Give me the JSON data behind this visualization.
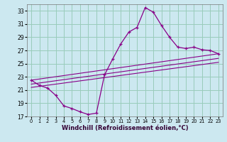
{
  "xlabel": "Windchill (Refroidissement éolien,°C)",
  "bg_color": "#cce8f0",
  "grid_color": "#99ccbb",
  "line_color": "#880088",
  "xlim": [
    -0.5,
    23.5
  ],
  "ylim": [
    17,
    34
  ],
  "yticks": [
    17,
    19,
    21,
    23,
    25,
    27,
    29,
    31,
    33
  ],
  "xticks": [
    0,
    1,
    2,
    3,
    4,
    5,
    6,
    7,
    8,
    9,
    10,
    11,
    12,
    13,
    14,
    15,
    16,
    17,
    18,
    19,
    20,
    21,
    22,
    23
  ],
  "series1_x": [
    0,
    1,
    2,
    3,
    4,
    5,
    6,
    7,
    8,
    9,
    10,
    11,
    12,
    13,
    14,
    15,
    16,
    17,
    18,
    19,
    20,
    21,
    22,
    23
  ],
  "series1_y": [
    22.5,
    21.7,
    21.3,
    20.2,
    18.6,
    18.2,
    17.7,
    17.3,
    17.5,
    23.3,
    25.7,
    28.0,
    29.8,
    30.5,
    33.5,
    32.8,
    30.8,
    29.0,
    27.5,
    27.3,
    27.5,
    27.1,
    27.0,
    26.5
  ],
  "line2_x": [
    0,
    23
  ],
  "line2_y": [
    22.5,
    26.5
  ],
  "line3_x": [
    0,
    23
  ],
  "line3_y": [
    21.9,
    25.8
  ],
  "line4_x": [
    0,
    23
  ],
  "line4_y": [
    21.4,
    25.2
  ]
}
